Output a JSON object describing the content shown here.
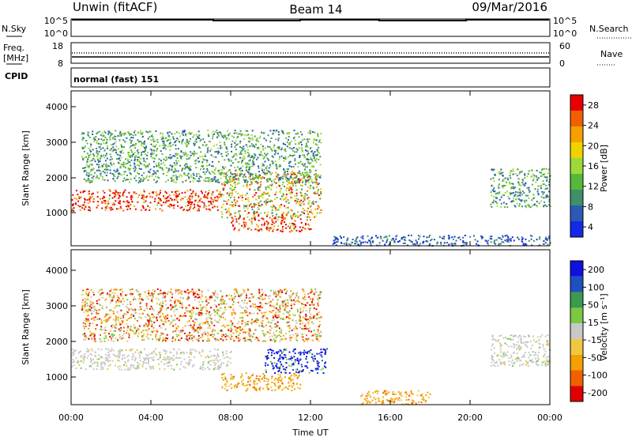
{
  "header": {
    "title": "Unwin (fitACF)",
    "beam": "Beam 14",
    "date": "09/Mar/2016"
  },
  "top_panels": {
    "nsky_label": "N.Sky",
    "nsky_ticks": [
      "10^5",
      "10^0"
    ],
    "nsearch_label": "N.Search",
    "freq_label_1": "Freq.",
    "freq_label_2": "[MHz]",
    "freq_ticks": [
      "18",
      "8"
    ],
    "nave_label": "Nave",
    "nave_ticks": [
      "60",
      "0"
    ],
    "cpid_label": "CPID",
    "cpid_value": "normal (fast) 151"
  },
  "power_panel": {
    "ylabel": "Slant Range [km]",
    "yticks": [
      "4000",
      "3000",
      "2000",
      "1000"
    ],
    "colorbar_label": "Power [dB]",
    "colorbar_ticks": [
      "28",
      "24",
      "20",
      "16",
      "12",
      "8",
      "4"
    ],
    "colors": [
      "#1428e6",
      "#2b59b5",
      "#3f8f6a",
      "#55b83a",
      "#9cd93a",
      "#f0d200",
      "#f5a000",
      "#f06000",
      "#e80000"
    ]
  },
  "velocity_panel": {
    "ylabel": "Slant Range [km]",
    "yticks": [
      "4000",
      "3000",
      "2000",
      "1000"
    ],
    "colorbar_label": "Velocity [m s⁻¹]",
    "colorbar_ticks": [
      "200",
      "100",
      "50",
      "15",
      "-15",
      "-50",
      "-100",
      "-200"
    ],
    "colors": [
      "#e00000",
      "#f06000",
      "#f5a000",
      "#f0c840",
      "#c8c8c8",
      "#7bc843",
      "#3a9a50",
      "#2050c0",
      "#1010e0"
    ]
  },
  "time_axis": {
    "ticks": [
      "00:00",
      "04:00",
      "08:00",
      "12:00",
      "16:00",
      "20:00",
      "00:00"
    ],
    "xlabel": "Time UT"
  },
  "chart_data": [
    {
      "type": "heatmap",
      "title": "Power",
      "xlabel": "Time UT",
      "ylabel": "Slant Range [km]",
      "xlim": [
        0,
        24
      ],
      "ylim": [
        180,
        4600
      ],
      "colorbar": {
        "label": "Power [dB]",
        "ticks": [
          4,
          8,
          12,
          16,
          20,
          24,
          28
        ]
      },
      "regions": [
        {
          "t": [
            0.0,
            7.5
          ],
          "r": [
            1200,
            1800
          ],
          "level": "high"
        },
        {
          "t": [
            7.5,
            12.5
          ],
          "r": [
            1000,
            2300
          ],
          "level": "mixed"
        },
        {
          "t": [
            8.0,
            12.0
          ],
          "r": [
            600,
            1000
          ],
          "level": "high"
        },
        {
          "t": [
            0.5,
            12.5
          ],
          "r": [
            2000,
            3500
          ],
          "level": "low-mid"
        },
        {
          "t": [
            21.0,
            24.0
          ],
          "r": [
            1300,
            2400
          ],
          "level": "low-mid"
        },
        {
          "t": [
            13.0,
            24.0
          ],
          "r": [
            200,
            500
          ],
          "level": "low"
        }
      ]
    },
    {
      "type": "heatmap",
      "title": "Velocity",
      "xlabel": "Time UT",
      "ylabel": "Slant Range [km]",
      "xlim": [
        0,
        24
      ],
      "ylim": [
        180,
        4600
      ],
      "colorbar": {
        "label": "Velocity [m s⁻¹]",
        "ticks": [
          -200,
          -100,
          -50,
          -15,
          15,
          50,
          100,
          200
        ]
      },
      "regions": [
        {
          "t": [
            0.0,
            8.0
          ],
          "r": [
            1200,
            1800
          ],
          "level": "near-zero"
        },
        {
          "t": [
            9.7,
            12.8
          ],
          "r": [
            1100,
            1800
          ],
          "level": "positive-high"
        },
        {
          "t": [
            7.5,
            11.5
          ],
          "r": [
            600,
            1100
          ],
          "level": "negative"
        },
        {
          "t": [
            0.5,
            12.5
          ],
          "r": [
            2000,
            3500
          ],
          "level": "mixed-negative"
        },
        {
          "t": [
            21.0,
            24.0
          ],
          "r": [
            1300,
            2200
          ],
          "level": "near-zero"
        },
        {
          "t": [
            14.5,
            18.0
          ],
          "r": [
            200,
            600
          ],
          "level": "negative"
        }
      ]
    }
  ]
}
